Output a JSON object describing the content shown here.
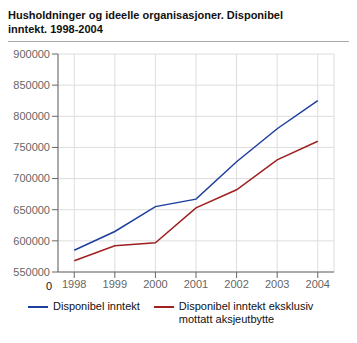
{
  "chart_data": {
    "type": "line",
    "title": "Husholdninger og ideelle organisasjoner. Disponibel\ninntekt. 1998-2004",
    "x": [
      1998,
      1999,
      2000,
      2001,
      2002,
      2003,
      2004
    ],
    "series": [
      {
        "name": "Disponibel inntekt",
        "color": "#1f3f9e",
        "values": [
          585000,
          615000,
          655000,
          667000,
          727000,
          780000,
          825000
        ]
      },
      {
        "name": "Disponibel inntekt eksklusiv\nmottatt aksjeutbytte",
        "color": "#9e2020",
        "values": [
          568000,
          592000,
          597000,
          653000,
          682000,
          730000,
          760000
        ]
      }
    ],
    "xlim": [
      1997.6,
      2004.4
    ],
    "xticks": [
      1998,
      1999,
      2000,
      2001,
      2002,
      2003,
      2004
    ],
    "ylim": [
      550000,
      900000
    ],
    "yticks": [
      550000,
      600000,
      650000,
      700000,
      750000,
      800000,
      850000,
      900000
    ],
    "grid": true,
    "legend": "bottom",
    "annotations": [
      "0"
    ]
  }
}
